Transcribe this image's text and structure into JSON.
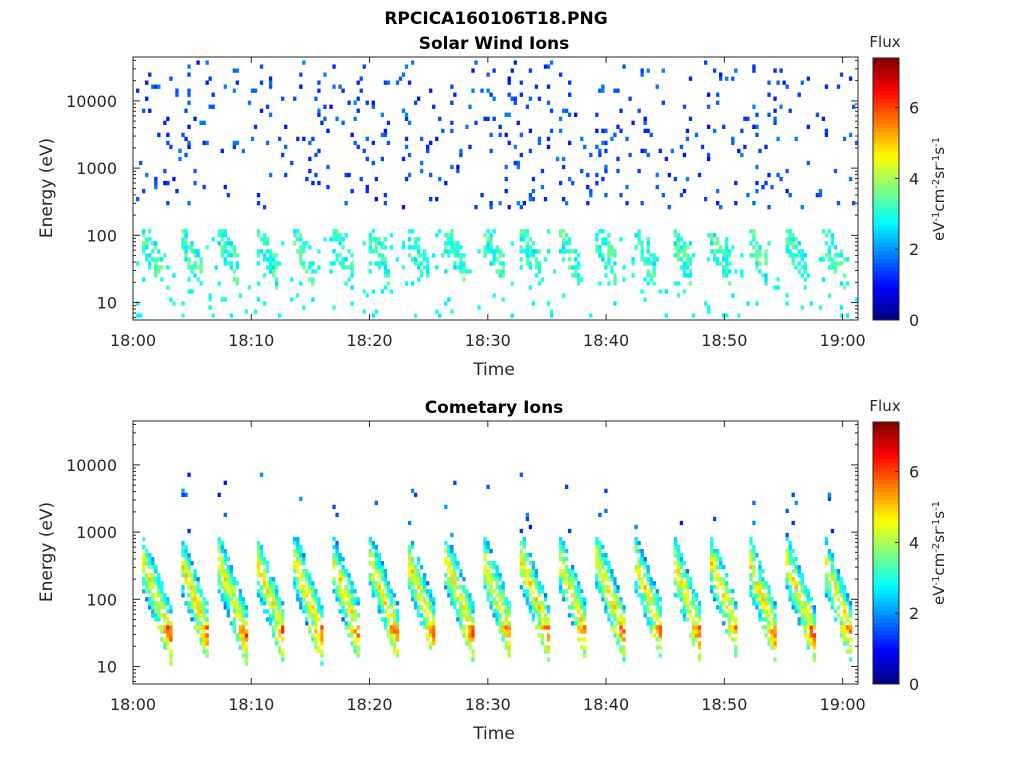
{
  "figure_title": "RPCICA160106T18.PNG",
  "colors": {
    "colormap": [
      "#00007f",
      "#0000ff",
      "#007fff",
      "#00ffff",
      "#7fff7f",
      "#ffff00",
      "#ff7f00",
      "#ff0000",
      "#7f0000"
    ],
    "axis": "#262626",
    "background": "#ffffff"
  },
  "chart_data": [
    {
      "type": "heatmap",
      "title": "Solar Wind Ions",
      "xlabel": "Time",
      "ylabel": "Energy (eV)",
      "x_tick_labels": [
        "18:00",
        "18:10",
        "18:20",
        "18:30",
        "18:40",
        "18:50",
        "19:00"
      ],
      "x_range_minutes": [
        0,
        61.3
      ],
      "y_scale": "log",
      "y_range": [
        5.5,
        45000
      ],
      "y_tick_values": [
        10,
        100,
        1000,
        10000
      ],
      "y_tick_labels": [
        "10",
        "100",
        "1000",
        "10000"
      ],
      "colorbar": {
        "title": "Flux",
        "label": "eV-1cm-2sr-1s-1",
        "range": [
          0,
          7.4
        ],
        "tick_values": [
          0,
          2,
          4,
          6
        ],
        "tick_labels": [
          "0",
          "2",
          "4",
          "6"
        ]
      },
      "sweep_period_minutes": 3.2,
      "sweep_offset_minutes": 0.8,
      "description_of_values": "sparse blue counts (flux ~1-2) at 300-10000 eV throughout; cyan-green streaks (flux ~2.5-3.5) at 10-100 eV recurring every ~3.2 min"
    },
    {
      "type": "heatmap",
      "title": "Cometary Ions",
      "xlabel": "Time",
      "ylabel": "Energy (eV)",
      "x_tick_labels": [
        "18:00",
        "18:10",
        "18:20",
        "18:30",
        "18:40",
        "18:50",
        "19:00"
      ],
      "x_range_minutes": [
        0,
        61.3
      ],
      "y_scale": "log",
      "y_range": [
        5.5,
        45000
      ],
      "y_tick_values": [
        10,
        100,
        1000,
        10000
      ],
      "y_tick_labels": [
        "10",
        "100",
        "1000",
        "10000"
      ],
      "colorbar": {
        "title": "Flux",
        "label": "eV-1cm-2sr-1s-1",
        "range": [
          0,
          7.4
        ],
        "tick_values": [
          0,
          2,
          4,
          6
        ],
        "tick_labels": [
          "0",
          "2",
          "4",
          "6"
        ]
      },
      "sweep_period_minutes": 3.2,
      "sweep_offset_minutes": 0.8,
      "description_of_values": "strong diagonal sweeps from ~300 eV down to ~10 eV each ~3.2 min, peak flux ~5.5-6.5 near 15-30 eV; sparse blue counts at 1000-8000 eV"
    }
  ]
}
